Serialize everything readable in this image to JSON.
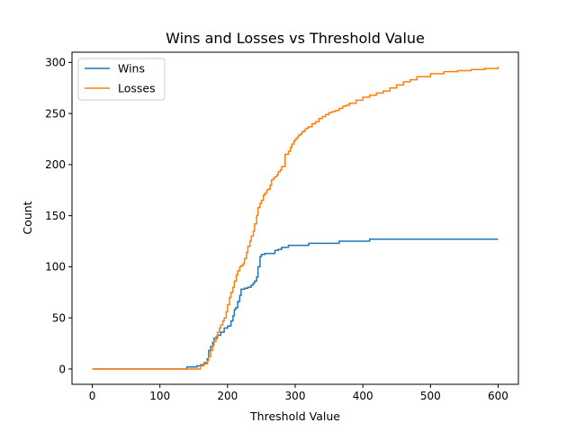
{
  "chart_data": {
    "type": "line",
    "title": "Wins and Losses vs Threshold Value",
    "xlabel": "Threshold Value",
    "ylabel": "Count",
    "xlim": [
      -30,
      630
    ],
    "ylim": [
      -15,
      310
    ],
    "xticks": [
      0,
      100,
      200,
      300,
      400,
      500,
      600
    ],
    "yticks": [
      0,
      50,
      100,
      150,
      200,
      250,
      300
    ],
    "grid": false,
    "legend": "top-left",
    "series": [
      {
        "name": "Wins",
        "color": "#1f77b4",
        "step": true,
        "x": [
          0,
          140,
          155,
          160,
          165,
          170,
          172,
          175,
          178,
          180,
          185,
          190,
          195,
          200,
          205,
          208,
          210,
          212,
          215,
          218,
          220,
          225,
          230,
          235,
          238,
          240,
          243,
          245,
          248,
          250,
          255,
          260,
          270,
          275,
          280,
          290,
          300,
          320,
          340,
          365,
          380,
          400,
          410,
          450,
          500,
          550,
          600
        ],
        "y": [
          0,
          2,
          3,
          4,
          6,
          10,
          18,
          22,
          26,
          30,
          33,
          36,
          40,
          42,
          47,
          52,
          58,
          60,
          66,
          72,
          78,
          79,
          80,
          82,
          84,
          86,
          90,
          100,
          110,
          112,
          113,
          113,
          116,
          117,
          119,
          121,
          121,
          123,
          123,
          125,
          125,
          125,
          127,
          127,
          127,
          127,
          127
        ]
      },
      {
        "name": "Losses",
        "color": "#ff7f0e",
        "step": true,
        "x": [
          0,
          155,
          160,
          165,
          170,
          172,
          175,
          178,
          180,
          183,
          185,
          188,
          190,
          193,
          195,
          198,
          200,
          203,
          205,
          208,
          210,
          213,
          215,
          218,
          220,
          223,
          225,
          228,
          230,
          233,
          235,
          238,
          240,
          243,
          245,
          248,
          250,
          253,
          255,
          258,
          260,
          263,
          265,
          268,
          270,
          273,
          275,
          278,
          280,
          285,
          290,
          293,
          295,
          298,
          300,
          303,
          305,
          308,
          310,
          313,
          315,
          318,
          320,
          325,
          330,
          335,
          340,
          345,
          350,
          355,
          360,
          365,
          370,
          375,
          380,
          390,
          400,
          410,
          420,
          430,
          440,
          450,
          460,
          470,
          480,
          500,
          520,
          540,
          560,
          580,
          600
        ],
        "y": [
          0,
          0,
          3,
          5,
          8,
          12,
          18,
          23,
          27,
          32,
          36,
          40,
          43,
          47,
          50,
          56,
          63,
          70,
          75,
          80,
          86,
          92,
          96,
          100,
          101,
          103,
          108,
          114,
          120,
          125,
          130,
          135,
          142,
          150,
          158,
          162,
          165,
          170,
          172,
          175,
          176,
          180,
          185,
          187,
          188,
          190,
          193,
          195,
          198,
          210,
          213,
          217,
          220,
          223,
          225,
          227,
          229,
          230,
          232,
          233,
          235,
          236,
          237,
          240,
          242,
          245,
          247,
          249,
          251,
          252,
          253,
          255,
          257,
          258,
          260,
          263,
          266,
          268,
          270,
          272,
          275,
          278,
          281,
          283,
          286,
          289,
          291,
          292,
          293,
          294,
          296
        ]
      }
    ]
  }
}
